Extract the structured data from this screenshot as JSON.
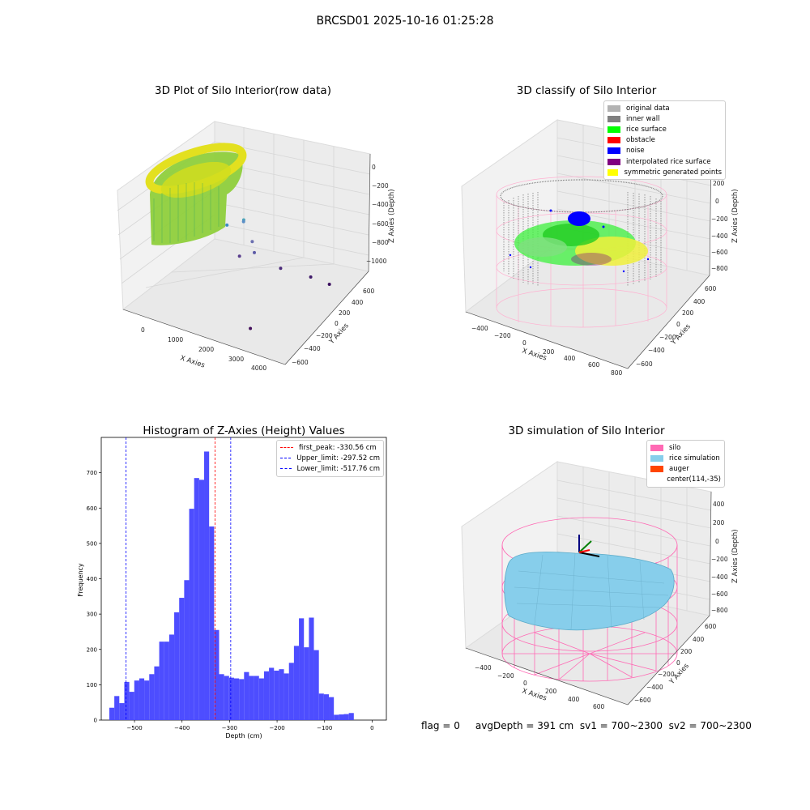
{
  "figure": {
    "suptitle": "BRCSD01 2025-10-16 01:25:28",
    "status_text": "flag = 0     avgDepth = 391 cm  sv1 = 700~2300  sv2 = 700~2300"
  },
  "colors": {
    "hist_bar": "#4d4dff",
    "peak_line": "#ff0000",
    "limit_line": "#0000ff",
    "pane": "#f2f2f2",
    "grid": "#dadada",
    "silo_wire": "#ff69b4",
    "rice_sim": "#87ceeb"
  },
  "chart_data": [
    {
      "type": "scatter",
      "title": "3D Plot of Silo Interior(row data)",
      "xlabel": "X Axies",
      "ylabel": "Y Axies",
      "zlabel": "Z Axies (Depth)",
      "x_ticks": [
        "0",
        "1000",
        "2000",
        "3000",
        "4000"
      ],
      "y_ticks": [
        "−600",
        "−400",
        "−200",
        "0",
        "200",
        "400",
        "600"
      ],
      "z_ticks": [
        "0",
        "−200",
        "−400",
        "−600",
        "−800",
        "−1000"
      ],
      "colormap": "viridis",
      "outlier_points": [
        {
          "x": 1100,
          "y": 300,
          "z": -750
        },
        {
          "x": 1450,
          "y": 350,
          "z": -700
        },
        {
          "x": 1500,
          "y": 320,
          "z": -690
        },
        {
          "x": 1800,
          "y": 280,
          "z": -800
        },
        {
          "x": 2000,
          "y": 200,
          "z": -820
        },
        {
          "x": 1700,
          "y": 150,
          "z": -850
        },
        {
          "x": 2600,
          "y": 250,
          "z": -920
        },
        {
          "x": 3300,
          "y": 300,
          "z": -950
        },
        {
          "x": 3700,
          "y": 350,
          "z": -1000
        },
        {
          "x": 2800,
          "y": -300,
          "z": -1050
        }
      ]
    },
    {
      "type": "scatter",
      "title": "3D classify of Silo Interior",
      "xlabel": "X Axies",
      "ylabel": "Y Axies",
      "zlabel": "Z Axies (Depth)",
      "x_ticks": [
        "−400",
        "−200",
        "0",
        "200",
        "400",
        "600",
        "800"
      ],
      "y_ticks": [
        "−600",
        "−400",
        "−200",
        "0",
        "200",
        "400",
        "600"
      ],
      "z_ticks": [
        "200",
        "0",
        "−200",
        "−400",
        "−600",
        "−800"
      ],
      "legend_position": "top-right",
      "legend": [
        {
          "label": "original data",
          "color": "#b3b3b3"
        },
        {
          "label": "inner wall",
          "color": "#808080"
        },
        {
          "label": "rice surface",
          "color": "#00ff00"
        },
        {
          "label": "obstacle",
          "color": "#ff0000"
        },
        {
          "label": "noise",
          "color": "#0000ff"
        },
        {
          "label": "interpolated rice surface",
          "color": "#800080"
        },
        {
          "label": "symmetric generated points",
          "color": "#ffff00"
        }
      ]
    },
    {
      "type": "bar",
      "title": "Histogram of Z-Axies (Height) Values",
      "xlabel": "Depth (cm)",
      "ylabel": "Frequency",
      "xlim": [
        -570,
        30
      ],
      "ylim": [
        0,
        800
      ],
      "x_ticks": [
        -500,
        -400,
        -300,
        -200,
        -100,
        0
      ],
      "x_tick_labels": [
        "−500",
        "−400",
        "−300",
        "−200",
        "−100",
        "0"
      ],
      "y_ticks": [
        0,
        100,
        200,
        300,
        400,
        500,
        600,
        700
      ],
      "bin_start": -553,
      "bin_width": 10.5,
      "values": [
        35,
        68,
        48,
        108,
        80,
        112,
        118,
        112,
        130,
        152,
        222,
        222,
        242,
        305,
        346,
        396,
        598,
        685,
        680,
        760,
        548,
        255,
        130,
        125,
        120,
        118,
        116,
        136,
        125,
        125,
        118,
        138,
        148,
        140,
        144,
        132,
        162,
        210,
        288,
        206,
        290,
        198,
        75,
        73,
        65,
        15,
        16,
        17,
        20
      ],
      "reference_lines": [
        {
          "label": "first_peak: -330.56 cm",
          "x": -330.56,
          "color": "#ff0000"
        },
        {
          "label": "Upper_limit: -297.52 cm",
          "x": -297.52,
          "color": "#0000ff"
        },
        {
          "label": "Lower_limit: -517.76 cm",
          "x": -517.76,
          "color": "#0000ff"
        }
      ],
      "legend_position": "top-right"
    },
    {
      "type": "area",
      "title": "3D simulation of Silo Interior",
      "xlabel": "X Axies",
      "ylabel": "Y Axies",
      "zlabel": "Z Axies (Depth)",
      "x_ticks": [
        "−400",
        "−200",
        "0",
        "200",
        "400",
        "600"
      ],
      "y_ticks": [
        "−600",
        "−400",
        "−200",
        "0",
        "200",
        "400",
        "600"
      ],
      "z_ticks": [
        "400",
        "200",
        "0",
        "−200",
        "−400",
        "−600",
        "−800"
      ],
      "legend_position": "top-right",
      "legend": [
        {
          "label": "silo",
          "color": "#ff69b4"
        },
        {
          "label": "rice simulation",
          "color": "#87ceeb"
        },
        {
          "label": "auger",
          "color": "#ff4500"
        },
        {
          "label": "center(114,-35)",
          "color": ""
        }
      ]
    }
  ]
}
